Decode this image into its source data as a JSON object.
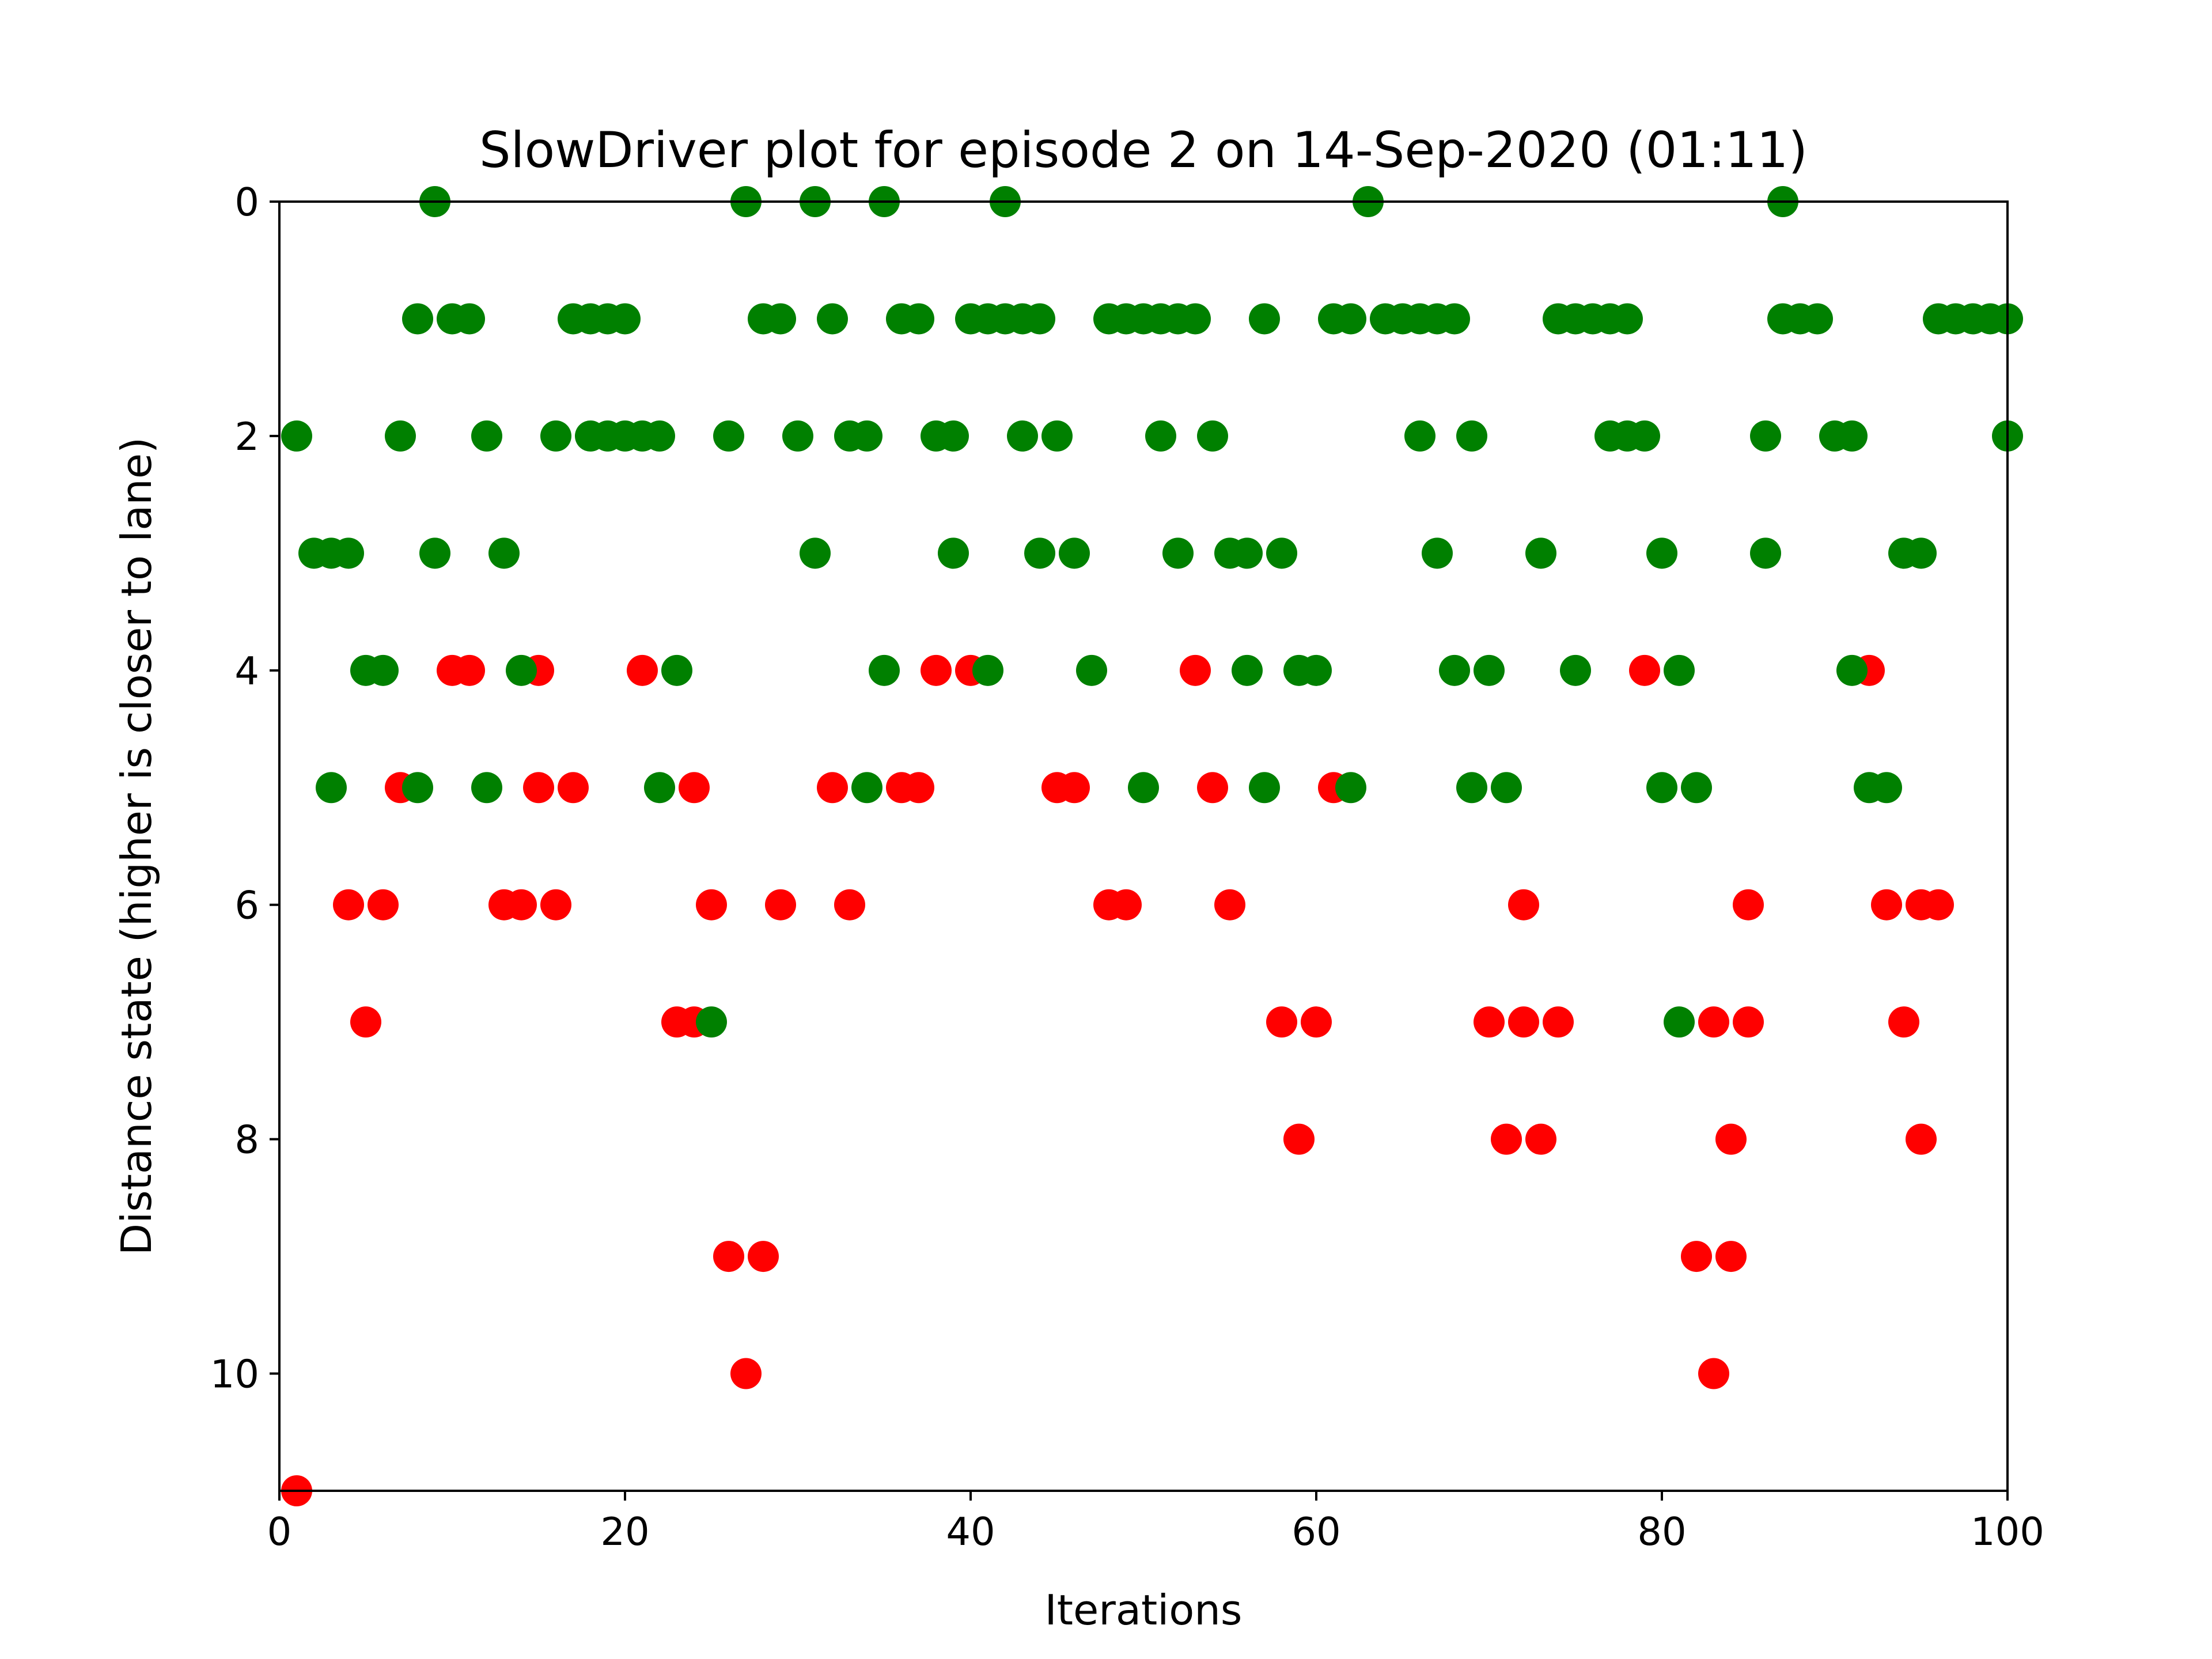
{
  "chart_data": {
    "type": "scatter",
    "title": "SlowDriver plot for episode 2 on 14-Sep-2020 (01:11)",
    "xlabel": "Iterations",
    "ylabel": "Distance state (higher is closer to lane)",
    "xlim": [
      0,
      100
    ],
    "ylim": [
      11,
      0
    ],
    "y_inverted": true,
    "x_ticks": [
      0,
      20,
      40,
      60,
      80,
      100
    ],
    "y_ticks": [
      0,
      2,
      4,
      6,
      8,
      10
    ],
    "series": [
      {
        "name": "red",
        "color": "#ff0000",
        "points": [
          [
            1,
            11
          ],
          [
            4,
            6
          ],
          [
            5,
            7
          ],
          [
            6,
            6
          ],
          [
            7,
            5
          ],
          [
            10,
            4
          ],
          [
            11,
            4
          ],
          [
            13,
            6
          ],
          [
            14,
            6
          ],
          [
            15,
            4
          ],
          [
            15,
            5
          ],
          [
            16,
            6
          ],
          [
            17,
            5
          ],
          [
            21,
            4
          ],
          [
            23,
            7
          ],
          [
            24,
            5
          ],
          [
            24,
            7
          ],
          [
            25,
            6
          ],
          [
            26,
            9
          ],
          [
            27,
            10
          ],
          [
            28,
            9
          ],
          [
            29,
            6
          ],
          [
            32,
            5
          ],
          [
            33,
            6
          ],
          [
            36,
            5
          ],
          [
            37,
            5
          ],
          [
            38,
            4
          ],
          [
            40,
            4
          ],
          [
            45,
            5
          ],
          [
            46,
            5
          ],
          [
            48,
            6
          ],
          [
            49,
            6
          ],
          [
            53,
            4
          ],
          [
            54,
            5
          ],
          [
            55,
            6
          ],
          [
            58,
            7
          ],
          [
            59,
            8
          ],
          [
            60,
            7
          ],
          [
            61,
            5
          ],
          [
            70,
            7
          ],
          [
            71,
            8
          ],
          [
            72,
            7
          ],
          [
            72,
            6
          ],
          [
            73,
            8
          ],
          [
            74,
            7
          ],
          [
            79,
            4
          ],
          [
            82,
            9
          ],
          [
            83,
            7
          ],
          [
            83,
            10
          ],
          [
            84,
            9
          ],
          [
            84,
            8
          ],
          [
            85,
            7
          ],
          [
            85,
            6
          ],
          [
            92,
            4
          ],
          [
            93,
            6
          ],
          [
            94,
            7
          ],
          [
            95,
            6
          ],
          [
            95,
            8
          ],
          [
            96,
            6
          ]
        ]
      },
      {
        "name": "green",
        "color": "#008000",
        "points": [
          [
            1,
            2
          ],
          [
            2,
            3
          ],
          [
            3,
            3
          ],
          [
            3,
            5
          ],
          [
            4,
            3
          ],
          [
            5,
            4
          ],
          [
            6,
            4
          ],
          [
            7,
            2
          ],
          [
            8,
            1
          ],
          [
            8,
            5
          ],
          [
            9,
            0
          ],
          [
            9,
            3
          ],
          [
            10,
            1
          ],
          [
            11,
            1
          ],
          [
            12,
            2
          ],
          [
            12,
            5
          ],
          [
            13,
            3
          ],
          [
            14,
            4
          ],
          [
            17,
            1
          ],
          [
            16,
            2
          ],
          [
            18,
            1
          ],
          [
            18,
            2
          ],
          [
            19,
            1
          ],
          [
            19,
            2
          ],
          [
            20,
            1
          ],
          [
            20,
            2
          ],
          [
            21,
            2
          ],
          [
            22,
            2
          ],
          [
            22,
            5
          ],
          [
            23,
            4
          ],
          [
            25,
            7
          ],
          [
            26,
            2
          ],
          [
            27,
            0
          ],
          [
            28,
            1
          ],
          [
            29,
            1
          ],
          [
            30,
            2
          ],
          [
            31,
            0
          ],
          [
            31,
            3
          ],
          [
            32,
            1
          ],
          [
            33,
            2
          ],
          [
            34,
            2
          ],
          [
            34,
            5
          ],
          [
            35,
            0
          ],
          [
            35,
            4
          ],
          [
            36,
            1
          ],
          [
            37,
            1
          ],
          [
            38,
            2
          ],
          [
            39,
            2
          ],
          [
            39,
            3
          ],
          [
            40,
            1
          ],
          [
            41,
            1
          ],
          [
            41,
            4
          ],
          [
            42,
            0
          ],
          [
            42,
            1
          ],
          [
            43,
            1
          ],
          [
            43,
            2
          ],
          [
            44,
            1
          ],
          [
            44,
            3
          ],
          [
            45,
            2
          ],
          [
            46,
            3
          ],
          [
            47,
            4
          ],
          [
            48,
            1
          ],
          [
            49,
            1
          ],
          [
            50,
            1
          ],
          [
            50,
            5
          ],
          [
            51,
            1
          ],
          [
            51,
            2
          ],
          [
            52,
            1
          ],
          [
            52,
            3
          ],
          [
            53,
            1
          ],
          [
            54,
            2
          ],
          [
            55,
            3
          ],
          [
            56,
            3
          ],
          [
            56,
            4
          ],
          [
            57,
            1
          ],
          [
            57,
            5
          ],
          [
            58,
            3
          ],
          [
            59,
            4
          ],
          [
            60,
            4
          ],
          [
            61,
            1
          ],
          [
            62,
            1
          ],
          [
            62,
            5
          ],
          [
            63,
            0
          ],
          [
            64,
            1
          ],
          [
            65,
            1
          ],
          [
            66,
            1
          ],
          [
            66,
            2
          ],
          [
            67,
            1
          ],
          [
            67,
            3
          ],
          [
            68,
            1
          ],
          [
            68,
            4
          ],
          [
            69,
            2
          ],
          [
            69,
            5
          ],
          [
            70,
            4
          ],
          [
            71,
            5
          ],
          [
            73,
            3
          ],
          [
            74,
            1
          ],
          [
            75,
            1
          ],
          [
            75,
            4
          ],
          [
            76,
            1
          ],
          [
            77,
            1
          ],
          [
            77,
            2
          ],
          [
            78,
            1
          ],
          [
            78,
            2
          ],
          [
            79,
            2
          ],
          [
            80,
            3
          ],
          [
            80,
            5
          ],
          [
            81,
            4
          ],
          [
            81,
            7
          ],
          [
            82,
            5
          ],
          [
            86,
            2
          ],
          [
            86,
            3
          ],
          [
            87,
            0
          ],
          [
            87,
            1
          ],
          [
            88,
            1
          ],
          [
            89,
            1
          ],
          [
            90,
            2
          ],
          [
            91,
            2
          ],
          [
            91,
            4
          ],
          [
            92,
            5
          ],
          [
            93,
            5
          ],
          [
            94,
            3
          ],
          [
            95,
            3
          ],
          [
            96,
            1
          ],
          [
            97,
            1
          ],
          [
            98,
            1
          ],
          [
            99,
            1
          ],
          [
            100,
            2
          ],
          [
            100,
            1
          ]
        ]
      }
    ],
    "grid": false,
    "legend": "none"
  }
}
